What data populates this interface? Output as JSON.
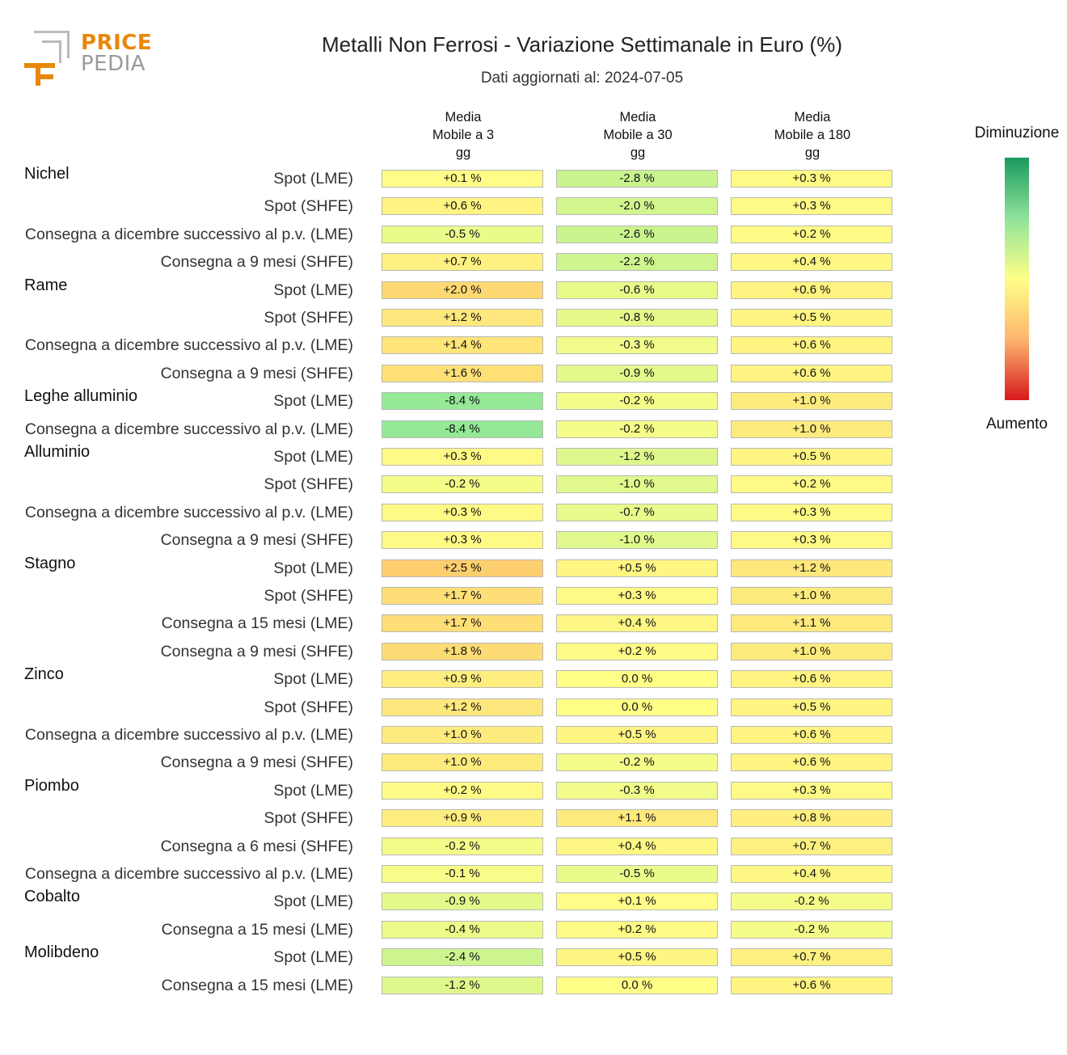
{
  "logo": {
    "line1": "PRICE",
    "line2": "PEDIA"
  },
  "title": "Metalli Non Ferrosi - Variazione Settimanale in Euro (%)",
  "subtitle": "Dati aggiornati al: 2024-07-05",
  "legend": {
    "top_label": "Diminuzione",
    "bottom_label": "Aumento",
    "colors": [
      "#1a9a5e",
      "#8fe39a",
      "#ffff88",
      "#fdb56e",
      "#d7191c"
    ]
  },
  "chart_data": {
    "type": "table",
    "title": "Metalli Non Ferrosi - Variazione Settimanale in Euro (%)",
    "subtitle": "Dati aggiornati al: 2024-07-05",
    "columns": [
      "Media\nMobile a 3\ngg",
      "Media\nMobile a 30\ngg",
      "Media\nMobile a 180\ngg"
    ],
    "rows": [
      {
        "group": "Nichel",
        "label": "Spot (LME)",
        "values": [
          0.1,
          -2.8,
          0.3
        ],
        "display": [
          "+0.1 %",
          "-2.8 %",
          "+0.3 %"
        ]
      },
      {
        "group": "",
        "label": "Spot (SHFE)",
        "values": [
          0.6,
          -2.0,
          0.3
        ],
        "display": [
          "+0.6 %",
          "-2.0 %",
          "+0.3 %"
        ]
      },
      {
        "group": "",
        "label": "Consegna a dicembre successivo al p.v. (LME)",
        "values": [
          -0.5,
          -2.6,
          0.2
        ],
        "display": [
          "-0.5 %",
          "-2.6 %",
          "+0.2 %"
        ]
      },
      {
        "group": "",
        "label": "Consegna a 9 mesi (SHFE)",
        "values": [
          0.7,
          -2.2,
          0.4
        ],
        "display": [
          "+0.7 %",
          "-2.2 %",
          "+0.4 %"
        ]
      },
      {
        "group": "Rame",
        "label": "Spot (LME)",
        "values": [
          2.0,
          -0.6,
          0.6
        ],
        "display": [
          "+2.0 %",
          "-0.6 %",
          "+0.6 %"
        ]
      },
      {
        "group": "",
        "label": "Spot (SHFE)",
        "values": [
          1.2,
          -0.8,
          0.5
        ],
        "display": [
          "+1.2 %",
          "-0.8 %",
          "+0.5 %"
        ]
      },
      {
        "group": "",
        "label": "Consegna a dicembre successivo al p.v. (LME)",
        "values": [
          1.4,
          -0.3,
          0.6
        ],
        "display": [
          "+1.4 %",
          "-0.3 %",
          "+0.6 %"
        ]
      },
      {
        "group": "",
        "label": "Consegna a 9 mesi (SHFE)",
        "values": [
          1.6,
          -0.9,
          0.6
        ],
        "display": [
          "+1.6 %",
          "-0.9 %",
          "+0.6 %"
        ]
      },
      {
        "group": "Leghe alluminio",
        "label": "Spot (LME)",
        "values": [
          -8.4,
          -0.2,
          1.0
        ],
        "display": [
          "-8.4 %",
          "-0.2 %",
          "+1.0 %"
        ]
      },
      {
        "group": "",
        "label": "Consegna a dicembre successivo al p.v. (LME)",
        "values": [
          -8.4,
          -0.2,
          1.0
        ],
        "display": [
          "-8.4 %",
          "-0.2 %",
          "+1.0 %"
        ]
      },
      {
        "group": "Alluminio",
        "label": "Spot (LME)",
        "values": [
          0.3,
          -1.2,
          0.5
        ],
        "display": [
          "+0.3 %",
          "-1.2 %",
          "+0.5 %"
        ]
      },
      {
        "group": "",
        "label": "Spot (SHFE)",
        "values": [
          -0.2,
          -1.0,
          0.2
        ],
        "display": [
          "-0.2 %",
          "-1.0 %",
          "+0.2 %"
        ]
      },
      {
        "group": "",
        "label": "Consegna a dicembre successivo al p.v. (LME)",
        "values": [
          0.3,
          -0.7,
          0.3
        ],
        "display": [
          "+0.3 %",
          "-0.7 %",
          "+0.3 %"
        ]
      },
      {
        "group": "",
        "label": "Consegna a 9 mesi (SHFE)",
        "values": [
          0.3,
          -1.0,
          0.3
        ],
        "display": [
          "+0.3 %",
          "-1.0 %",
          "+0.3 %"
        ]
      },
      {
        "group": "Stagno",
        "label": "Spot (LME)",
        "values": [
          2.5,
          0.5,
          1.2
        ],
        "display": [
          "+2.5 %",
          "+0.5 %",
          "+1.2 %"
        ]
      },
      {
        "group": "",
        "label": "Spot (SHFE)",
        "values": [
          1.7,
          0.3,
          1.0
        ],
        "display": [
          "+1.7 %",
          "+0.3 %",
          "+1.0 %"
        ]
      },
      {
        "group": "",
        "label": "Consegna a 15 mesi (LME)",
        "values": [
          1.7,
          0.4,
          1.1
        ],
        "display": [
          "+1.7 %",
          "+0.4 %",
          "+1.1 %"
        ]
      },
      {
        "group": "",
        "label": "Consegna a 9 mesi (SHFE)",
        "values": [
          1.8,
          0.2,
          1.0
        ],
        "display": [
          "+1.8 %",
          "+0.2 %",
          "+1.0 %"
        ]
      },
      {
        "group": "Zinco",
        "label": "Spot (LME)",
        "values": [
          0.9,
          0.0,
          0.6
        ],
        "display": [
          "+0.9 %",
          "0.0 %",
          "+0.6 %"
        ]
      },
      {
        "group": "",
        "label": "Spot (SHFE)",
        "values": [
          1.2,
          0.0,
          0.5
        ],
        "display": [
          "+1.2 %",
          "0.0 %",
          "+0.5 %"
        ]
      },
      {
        "group": "",
        "label": "Consegna a dicembre successivo al p.v. (LME)",
        "values": [
          1.0,
          0.5,
          0.6
        ],
        "display": [
          "+1.0 %",
          "+0.5 %",
          "+0.6 %"
        ]
      },
      {
        "group": "",
        "label": "Consegna a 9 mesi (SHFE)",
        "values": [
          1.0,
          -0.2,
          0.6
        ],
        "display": [
          "+1.0 %",
          "-0.2 %",
          "+0.6 %"
        ]
      },
      {
        "group": "Piombo",
        "label": "Spot (LME)",
        "values": [
          0.2,
          -0.3,
          0.3
        ],
        "display": [
          "+0.2 %",
          "-0.3 %",
          "+0.3 %"
        ]
      },
      {
        "group": "",
        "label": "Spot (SHFE)",
        "values": [
          0.9,
          1.1,
          0.8
        ],
        "display": [
          "+0.9 %",
          "+1.1 %",
          "+0.8 %"
        ]
      },
      {
        "group": "",
        "label": "Consegna a 6 mesi (SHFE)",
        "values": [
          -0.2,
          0.4,
          0.7
        ],
        "display": [
          "-0.2 %",
          "+0.4 %",
          "+0.7 %"
        ]
      },
      {
        "group": "",
        "label": "Consegna a dicembre successivo al p.v. (LME)",
        "values": [
          -0.1,
          -0.5,
          0.4
        ],
        "display": [
          "-0.1 %",
          "-0.5 %",
          "+0.4 %"
        ]
      },
      {
        "group": "Cobalto",
        "label": "Spot (LME)",
        "values": [
          -0.9,
          0.1,
          -0.2
        ],
        "display": [
          "-0.9 %",
          "+0.1 %",
          "-0.2 %"
        ]
      },
      {
        "group": "",
        "label": "Consegna a 15 mesi (LME)",
        "values": [
          -0.4,
          0.2,
          -0.2
        ],
        "display": [
          "-0.4 %",
          "+0.2 %",
          "-0.2 %"
        ]
      },
      {
        "group": "Molibdeno",
        "label": "Spot (LME)",
        "values": [
          -2.4,
          0.5,
          0.7
        ],
        "display": [
          "-2.4 %",
          "+0.5 %",
          "+0.7 %"
        ]
      },
      {
        "group": "",
        "label": "Consegna a 15 mesi (LME)",
        "values": [
          -1.2,
          0.0,
          0.6
        ],
        "display": [
          "-1.2 %",
          "0.0 %",
          "+0.6 %"
        ]
      }
    ]
  }
}
